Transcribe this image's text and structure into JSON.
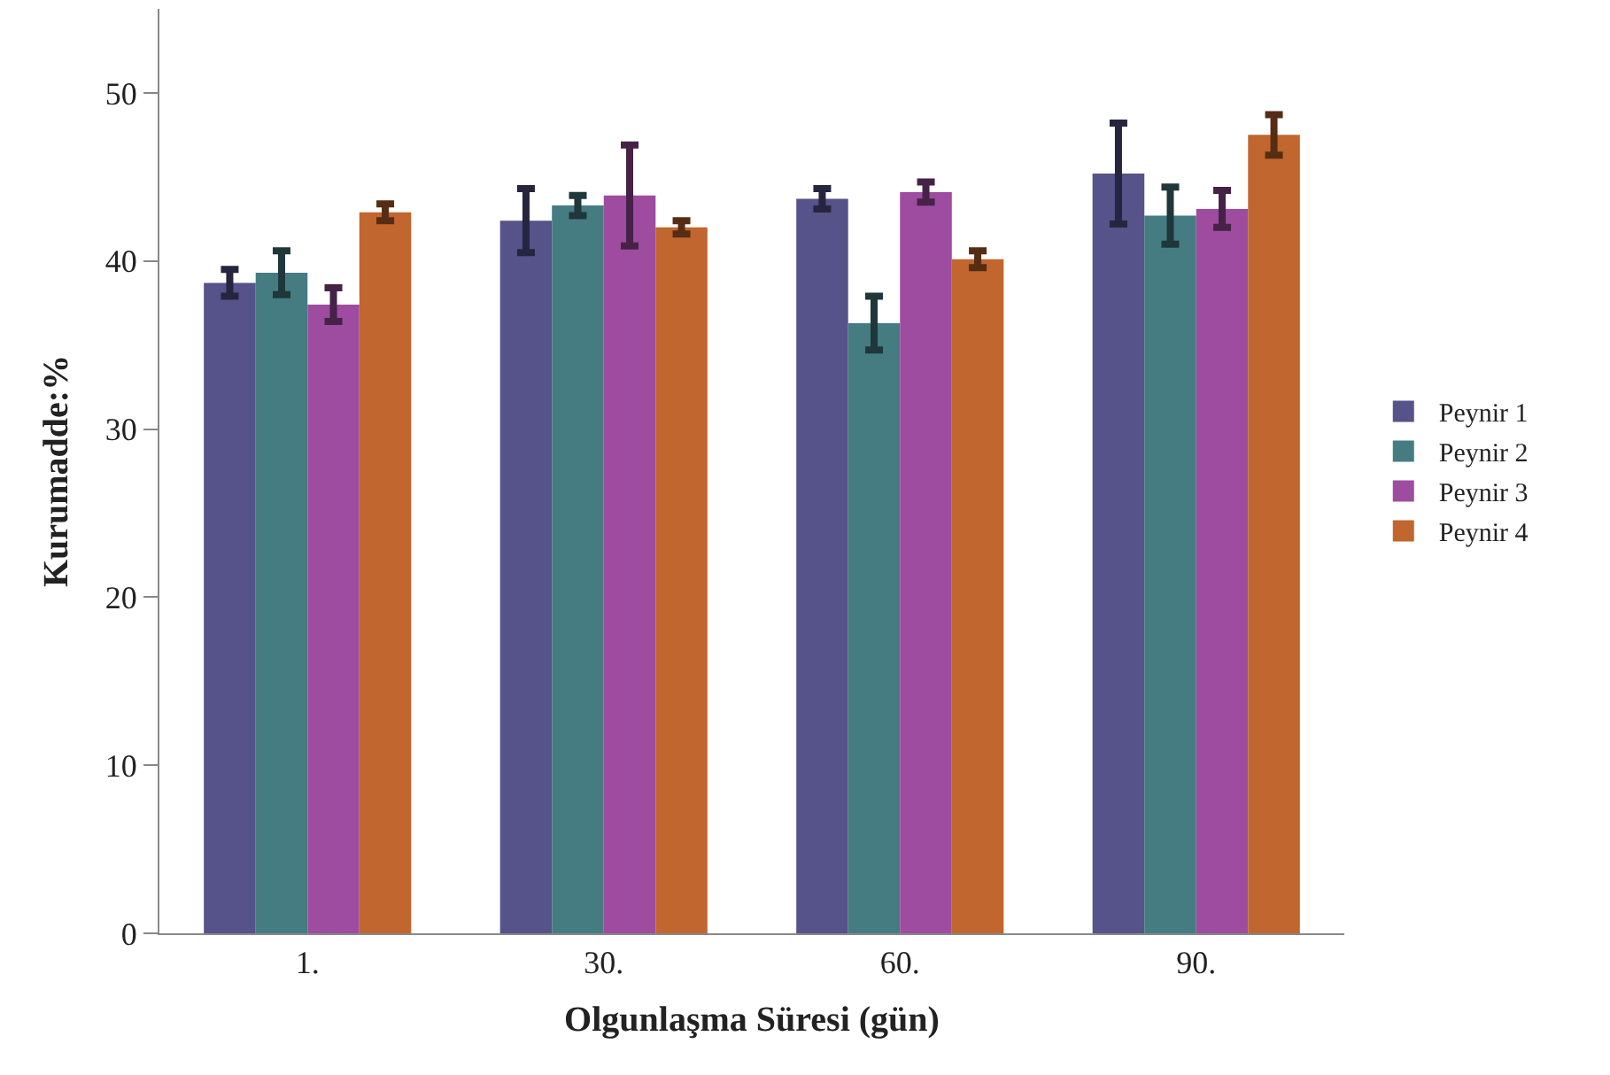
{
  "chart_data": {
    "type": "bar",
    "xlabel": "Olgunlaşma Süresi (gün)",
    "ylabel": "Kurumadde:%",
    "categories": [
      "1.",
      "30.",
      "60.",
      "90."
    ],
    "series": [
      {
        "name": "Peynir 1",
        "color": "#55538a",
        "values": [
          38.7,
          42.4,
          43.7,
          45.2
        ],
        "errors": [
          0.8,
          1.9,
          0.6,
          3.0
        ]
      },
      {
        "name": "Peynir 2",
        "color": "#457c82",
        "values": [
          39.3,
          43.3,
          36.3,
          42.7
        ],
        "errors": [
          1.3,
          0.6,
          1.6,
          1.7
        ]
      },
      {
        "name": "Peynir 3",
        "color": "#9d4c9f",
        "values": [
          37.4,
          43.9,
          44.1,
          43.1
        ],
        "errors": [
          1.0,
          3.0,
          0.6,
          1.1
        ]
      },
      {
        "name": "Peynir 4",
        "color": "#c0662e",
        "values": [
          42.9,
          42.0,
          40.1,
          47.5
        ],
        "errors": [
          0.5,
          0.4,
          0.5,
          1.2
        ]
      }
    ],
    "ylim": [
      0,
      55
    ],
    "yticks": [
      0,
      10,
      20,
      30,
      40,
      50
    ],
    "legend": "right"
  }
}
